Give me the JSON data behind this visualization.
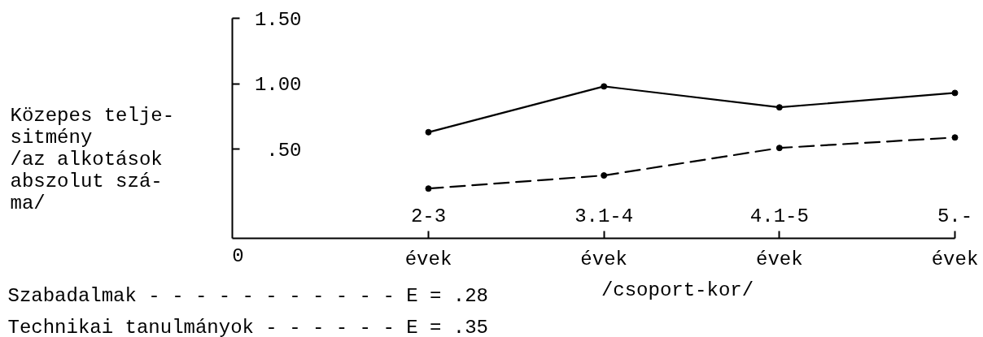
{
  "chart_data": {
    "type": "line",
    "xlabel": "/csoport-kor/",
    "ylabel": "Közepes telje-\nsitmény\n/az alkotások\nabszolut szá-\nma/",
    "categories": [
      "2-3 évek",
      "3.1-4 évek",
      "4.1-5 évek",
      "5.- évek"
    ],
    "series": [
      {
        "color": "#000000",
        "line_style": "solid",
        "values": [
          0.63,
          0.98,
          0.82,
          0.93
        ]
      },
      {
        "color": "#000000",
        "line_style": "dashed",
        "values": [
          0.2,
          0.3,
          0.51,
          0.59
        ]
      }
    ],
    "ylim": [
      -0.18,
      1.5
    ],
    "yticks": [
      {
        "value": 0.5,
        "label": ".50"
      },
      {
        "value": 1,
        "label": "1.00"
      },
      {
        "value": 1.5,
        "label": "1.50"
      }
    ],
    "marker": "circle",
    "annotations": [
      "0",
      "Szabadalmak - - - - - - - - - - - E = .28",
      "Technikai tanulmányok - - - - - - E = .35"
    ]
  }
}
